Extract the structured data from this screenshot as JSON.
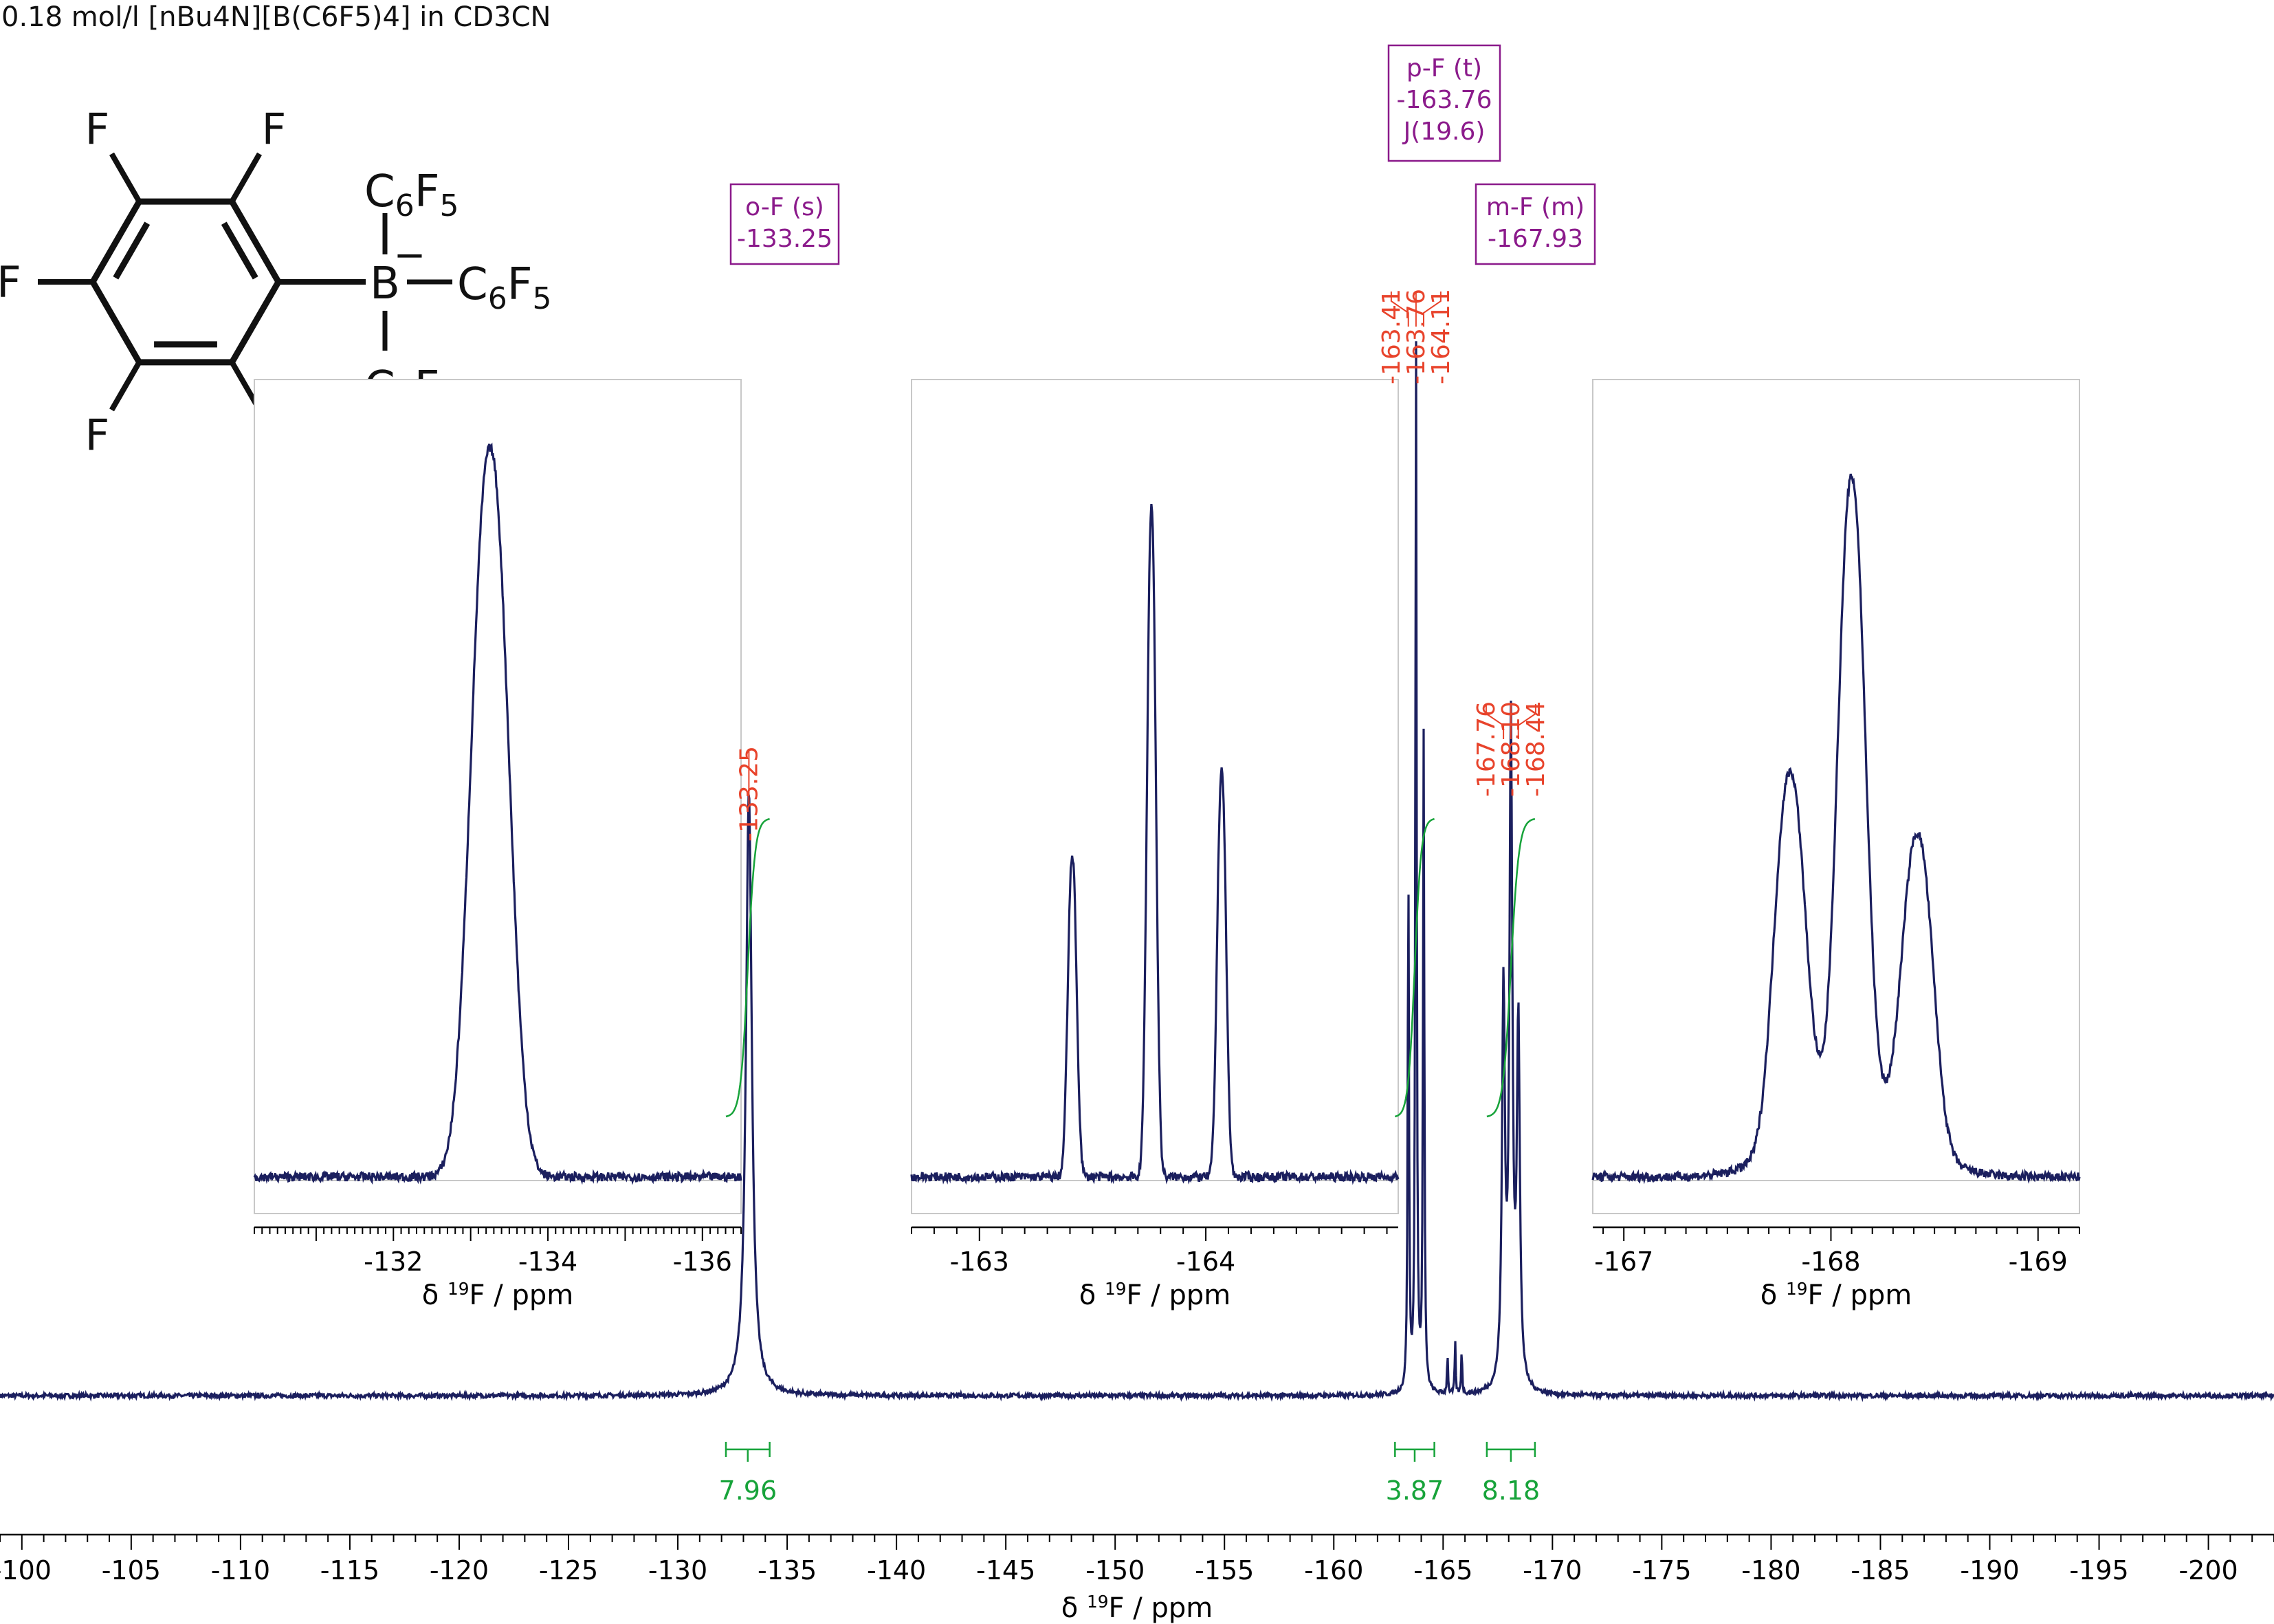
{
  "title": "0.18 mol/l [nBu4N][B(C6F5)4] in CD3CN",
  "chart_data": {
    "type": "line",
    "title": "0.18 mol/l [nBu4N][B(C6F5)4] in CD3CN",
    "xlabel": "δ 19F / ppm",
    "xlabel_parts": [
      "δ ",
      "19",
      "F / ppm"
    ],
    "xlim": [
      -99,
      -203
    ],
    "x_reversed": true,
    "x_ticks": [
      -100,
      -105,
      -110,
      -115,
      -120,
      -125,
      -130,
      -135,
      -140,
      -145,
      -150,
      -155,
      -160,
      -165,
      -170,
      -175,
      -180,
      -185,
      -190,
      -195,
      -200
    ],
    "x_ticks_labels": [
      "-100",
      "-105",
      "-110",
      "-115",
      "-120",
      "-125",
      "-130",
      "-135",
      "-140",
      "-145",
      "-150",
      "-155",
      "-160",
      "-165",
      "-170",
      "-175",
      "-180",
      "-185",
      "-190",
      "-195",
      "-200"
    ],
    "colors": {
      "spectrum": "#1b1f5e",
      "peak_labels": "#e8432b",
      "integrals": "#17a33a",
      "annotation": "#8b1a8b",
      "inset_frame": "#c8c8c8"
    },
    "peaks": [
      {
        "shift": -133.25,
        "height": 0.575,
        "width": 0.32
      },
      {
        "shift": -163.41,
        "height": 0.49,
        "width": 0.07
      },
      {
        "shift": -163.76,
        "height": 1.0,
        "width": 0.07
      },
      {
        "shift": -164.11,
        "height": 0.62,
        "width": 0.07
      },
      {
        "shift": -165.2,
        "height": 0.04,
        "width": 0.05
      },
      {
        "shift": -165.55,
        "height": 0.05,
        "width": 0.05
      },
      {
        "shift": -165.85,
        "height": 0.045,
        "width": 0.05
      },
      {
        "shift": -167.76,
        "height": 0.37,
        "width": 0.16
      },
      {
        "shift": -168.1,
        "height": 0.62,
        "width": 0.16
      },
      {
        "shift": -168.44,
        "height": 0.34,
        "width": 0.16
      }
    ],
    "peak_labels": [
      {
        "group": "o-F",
        "labels": [
          "-133.25"
        ],
        "shifts": [
          -133.25
        ]
      },
      {
        "group": "p-F",
        "labels": [
          "-163.41",
          "-163.76",
          "-164.11"
        ],
        "shifts": [
          -163.41,
          -163.76,
          -164.11
        ]
      },
      {
        "group": "m-F",
        "labels": [
          "-167.76",
          "-168.10",
          "-168.44"
        ],
        "shifts": [
          -167.76,
          -168.1,
          -168.44
        ]
      }
    ],
    "integrals": [
      {
        "from": -132.2,
        "to": -134.2,
        "value": "7.96"
      },
      {
        "from": -162.8,
        "to": -164.6,
        "value": "3.87"
      },
      {
        "from": -167.0,
        "to": -169.2,
        "value": "8.18"
      }
    ],
    "annotations": [
      {
        "lines": [
          "o-F (s)",
          "-133.25"
        ]
      },
      {
        "lines": [
          "p-F (t)",
          "-163.76",
          "J(19.6)"
        ]
      },
      {
        "lines": [
          "m-F (m)",
          "-167.93"
        ]
      }
    ],
    "insets": [
      {
        "xlim": [
          -130.2,
          -136.5
        ],
        "ticks": [
          -132,
          -134,
          -136
        ],
        "tick_labels": [
          "-132",
          "-134",
          "-136"
        ],
        "xlabel": "δ 19F / ppm",
        "peaks": [
          {
            "shift": -133.25,
            "height": 1.0,
            "width": 0.55,
            "shoulder": 0.12
          }
        ]
      },
      {
        "xlim": [
          -162.7,
          -164.85
        ],
        "ticks": [
          -163,
          -164
        ],
        "tick_labels": [
          "-163",
          "-164"
        ],
        "xlabel": "δ 19F / ppm",
        "peaks": [
          {
            "shift": -163.41,
            "height": 0.44,
            "width": 0.045
          },
          {
            "shift": -163.76,
            "height": 0.92,
            "width": 0.045
          },
          {
            "shift": -164.07,
            "height": 0.56,
            "width": 0.045
          }
        ]
      },
      {
        "xlim": [
          -166.85,
          -169.2
        ],
        "ticks": [
          -167,
          -168,
          -169
        ],
        "tick_labels": [
          "-167",
          "-168",
          "-169"
        ],
        "xlabel": "δ 19F / ppm",
        "peaks": [
          {
            "shift": -167.8,
            "height": 0.5,
            "width": 0.17
          },
          {
            "shift": -168.1,
            "height": 0.86,
            "width": 0.15
          },
          {
            "shift": -168.42,
            "height": 0.42,
            "width": 0.17
          },
          {
            "shift": -168.1,
            "height": 0.1,
            "width": 0.65
          }
        ]
      }
    ],
    "structure": {
      "ring_fluorines": [
        "F",
        "F",
        "F",
        "F",
        "F"
      ],
      "boron": "B",
      "charge": "−",
      "substituent_parts": [
        "C",
        "6",
        "F",
        "5"
      ],
      "substituent_count": 3
    }
  }
}
